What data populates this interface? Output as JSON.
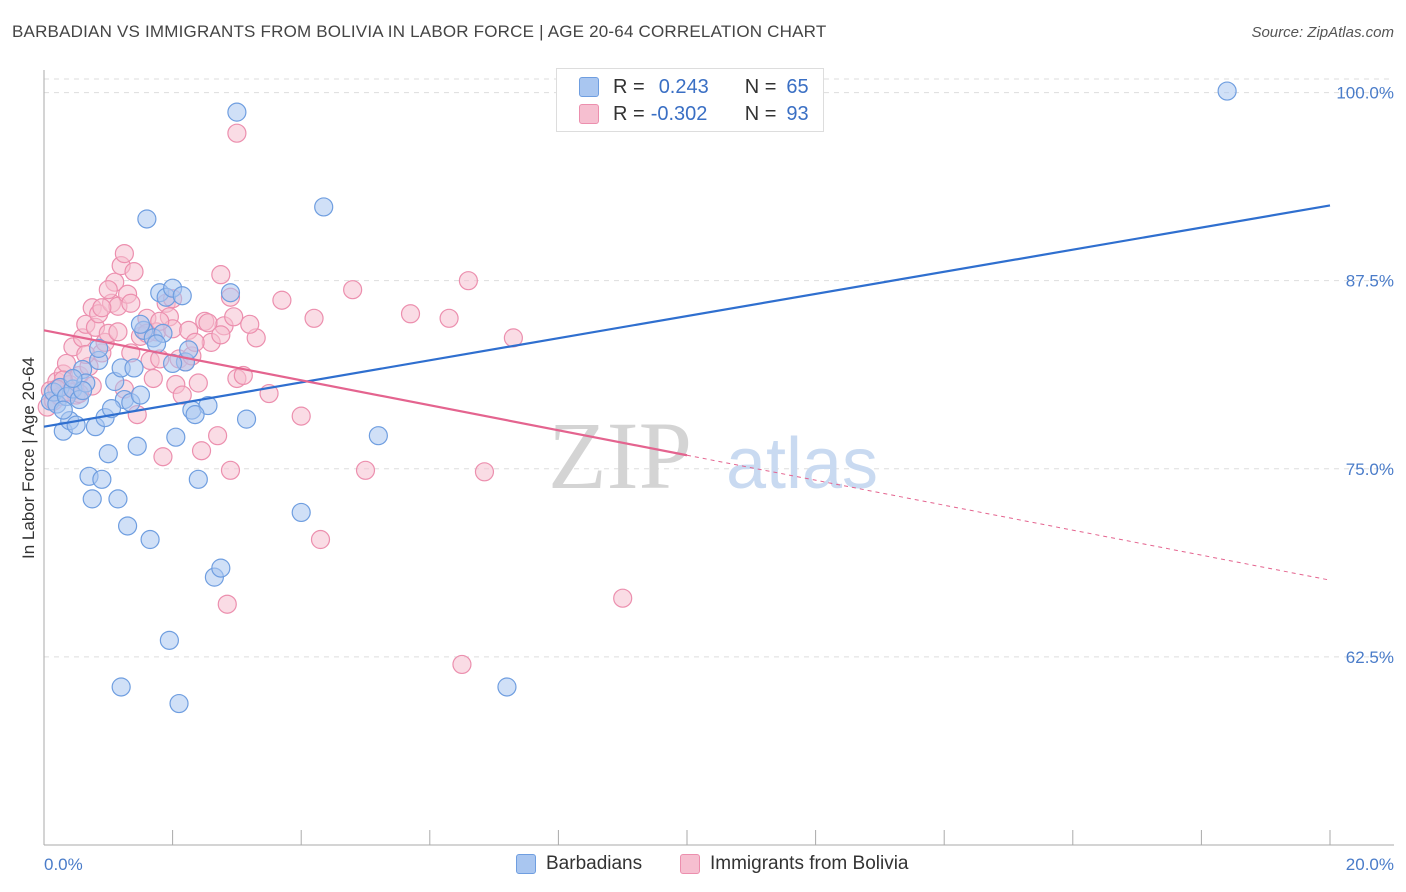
{
  "header": {
    "title": "BARBADIAN VS IMMIGRANTS FROM BOLIVIA IN LABOR FORCE | AGE 20-64 CORRELATION CHART",
    "source": "Source: ZipAtlas.com"
  },
  "watermark": {
    "zip": "ZIP",
    "atlas": "atlas"
  },
  "legend": {
    "rows": [
      {
        "r_label": "R =",
        "r_value": "0.243",
        "n_label": "N =",
        "n_value": "65"
      },
      {
        "r_label": "R =",
        "r_value": "-0.302",
        "n_label": "N =",
        "n_value": "93"
      }
    ]
  },
  "bottom_legend": {
    "series1": "Barbadians",
    "series2": "Immigrants from Bolivia"
  },
  "colors": {
    "blue_fill": "#a9c6f0",
    "blue_stroke": "#6f9ee0",
    "blue_line": "#2f6fcf",
    "pink_fill": "#f6bfd0",
    "pink_stroke": "#ec8fae",
    "pink_line": "#e4648f",
    "grid": "#dddddd",
    "axis": "#aaaaaa",
    "tick_text": "#4a7cc9"
  },
  "chart_data": {
    "type": "scatter",
    "title": "BARBADIAN VS IMMIGRANTS FROM BOLIVIA IN LABOR FORCE | AGE 20-64 CORRELATION CHART",
    "xlabel": "",
    "ylabel": "In Labor Force | Age 20-64",
    "xlim": [
      0,
      20
    ],
    "ylim": [
      50,
      101.5
    ],
    "x_tick_labels": [
      "0.0%",
      "20.0%"
    ],
    "y_ticks": [
      62.5,
      75.0,
      87.5,
      100.0
    ],
    "y_tick_labels": [
      "62.5%",
      "75.0%",
      "87.5%",
      "100.0%"
    ],
    "grid": true,
    "legend_position": "top-center",
    "series": [
      {
        "name": "Barbadians",
        "r": 0.243,
        "n": 65,
        "trend": {
          "x0": 0,
          "y0": 77.8,
          "x1": 20,
          "y1": 92.5,
          "dashed_from": null
        },
        "points": [
          [
            0.1,
            79.5
          ],
          [
            0.15,
            80.1
          ],
          [
            0.2,
            79.3
          ],
          [
            0.25,
            80.4
          ],
          [
            0.3,
            77.5
          ],
          [
            0.35,
            79.8
          ],
          [
            0.4,
            78.2
          ],
          [
            0.45,
            80.3
          ],
          [
            0.5,
            77.9
          ],
          [
            0.55,
            79.6
          ],
          [
            0.6,
            81.6
          ],
          [
            0.65,
            80.7
          ],
          [
            0.7,
            74.5
          ],
          [
            0.75,
            73.0
          ],
          [
            0.8,
            77.8
          ],
          [
            0.85,
            82.2
          ],
          [
            0.9,
            74.3
          ],
          [
            0.95,
            78.4
          ],
          [
            1.0,
            76.0
          ],
          [
            1.1,
            80.8
          ],
          [
            1.15,
            73.0
          ],
          [
            1.2,
            81.7
          ],
          [
            1.25,
            79.6
          ],
          [
            1.3,
            71.2
          ],
          [
            1.35,
            79.4
          ],
          [
            1.4,
            81.7
          ],
          [
            1.45,
            76.5
          ],
          [
            1.5,
            79.9
          ],
          [
            1.55,
            84.2
          ],
          [
            1.6,
            91.6
          ],
          [
            1.65,
            70.3
          ],
          [
            1.7,
            83.7
          ],
          [
            1.8,
            86.7
          ],
          [
            1.85,
            84.0
          ],
          [
            1.9,
            86.4
          ],
          [
            1.95,
            63.6
          ],
          [
            2.0,
            87.0
          ],
          [
            2.05,
            77.1
          ],
          [
            2.1,
            59.4
          ],
          [
            2.15,
            86.5
          ],
          [
            2.2,
            82.1
          ],
          [
            2.25,
            82.9
          ],
          [
            2.3,
            78.9
          ],
          [
            2.4,
            74.3
          ],
          [
            2.55,
            79.2
          ],
          [
            2.65,
            67.8
          ],
          [
            2.75,
            68.4
          ],
          [
            2.9,
            86.7
          ],
          [
            3.0,
            98.7
          ],
          [
            3.15,
            78.3
          ],
          [
            4.0,
            72.1
          ],
          [
            4.35,
            92.4
          ],
          [
            5.2,
            77.2
          ],
          [
            7.2,
            60.5
          ],
          [
            18.4,
            100.1
          ],
          [
            1.2,
            60.5
          ],
          [
            0.3,
            78.9
          ],
          [
            0.6,
            80.2
          ],
          [
            1.05,
            79.0
          ],
          [
            2.35,
            78.6
          ],
          [
            1.75,
            83.3
          ],
          [
            0.45,
            81.0
          ],
          [
            0.85,
            83.0
          ],
          [
            1.5,
            84.6
          ],
          [
            2.0,
            82.0
          ]
        ]
      },
      {
        "name": "Immigrants from Bolivia",
        "r": -0.302,
        "n": 93,
        "trend": {
          "x0": 0,
          "y0": 84.2,
          "x1": 20,
          "y1": 67.6,
          "dashed_from": 10.0
        },
        "points": [
          [
            0.05,
            79.1
          ],
          [
            0.1,
            80.2
          ],
          [
            0.15,
            79.5
          ],
          [
            0.2,
            80.8
          ],
          [
            0.25,
            79.8
          ],
          [
            0.3,
            81.3
          ],
          [
            0.35,
            82.0
          ],
          [
            0.4,
            80.6
          ],
          [
            0.45,
            83.1
          ],
          [
            0.5,
            79.9
          ],
          [
            0.55,
            81.2
          ],
          [
            0.6,
            83.7
          ],
          [
            0.65,
            84.6
          ],
          [
            0.7,
            81.8
          ],
          [
            0.75,
            85.7
          ],
          [
            0.8,
            84.4
          ],
          [
            0.85,
            85.3
          ],
          [
            0.9,
            82.7
          ],
          [
            0.95,
            83.4
          ],
          [
            1.0,
            84.0
          ],
          [
            1.05,
            86.0
          ],
          [
            1.1,
            87.4
          ],
          [
            1.15,
            85.8
          ],
          [
            1.2,
            88.5
          ],
          [
            1.25,
            89.3
          ],
          [
            1.3,
            86.6
          ],
          [
            1.35,
            86.0
          ],
          [
            1.4,
            88.1
          ],
          [
            1.45,
            78.6
          ],
          [
            1.5,
            83.8
          ],
          [
            1.55,
            84.2
          ],
          [
            1.6,
            85.0
          ],
          [
            1.65,
            82.2
          ],
          [
            1.7,
            81.0
          ],
          [
            1.75,
            84.1
          ],
          [
            1.8,
            82.3
          ],
          [
            1.85,
            75.8
          ],
          [
            1.9,
            86.0
          ],
          [
            1.95,
            85.1
          ],
          [
            2.0,
            84.3
          ],
          [
            2.05,
            80.6
          ],
          [
            2.1,
            82.3
          ],
          [
            2.15,
            79.9
          ],
          [
            2.2,
            82.1
          ],
          [
            2.25,
            84.2
          ],
          [
            2.3,
            82.5
          ],
          [
            2.4,
            80.7
          ],
          [
            2.45,
            76.2
          ],
          [
            2.5,
            84.8
          ],
          [
            2.6,
            83.4
          ],
          [
            2.7,
            77.2
          ],
          [
            2.75,
            87.9
          ],
          [
            2.8,
            84.5
          ],
          [
            2.85,
            66.0
          ],
          [
            2.9,
            86.4
          ],
          [
            2.95,
            85.1
          ],
          [
            3.0,
            81.0
          ],
          [
            3.1,
            81.2
          ],
          [
            3.3,
            83.7
          ],
          [
            3.5,
            80.0
          ],
          [
            3.7,
            86.2
          ],
          [
            4.0,
            78.5
          ],
          [
            4.2,
            85.0
          ],
          [
            4.3,
            70.3
          ],
          [
            4.8,
            86.9
          ],
          [
            5.0,
            74.9
          ],
          [
            5.7,
            85.3
          ],
          [
            6.3,
            85.0
          ],
          [
            6.5,
            62.0
          ],
          [
            6.6,
            87.5
          ],
          [
            6.85,
            74.8
          ],
          [
            7.3,
            83.7
          ],
          [
            9.0,
            66.4
          ],
          [
            3.0,
            97.3
          ],
          [
            2.9,
            74.9
          ],
          [
            1.0,
            86.9
          ],
          [
            0.75,
            80.5
          ],
          [
            0.55,
            80.0
          ],
          [
            0.3,
            80.9
          ],
          [
            1.35,
            82.7
          ],
          [
            1.15,
            84.1
          ],
          [
            2.55,
            84.7
          ],
          [
            2.0,
            86.3
          ],
          [
            0.9,
            85.7
          ],
          [
            0.4,
            80.1
          ],
          [
            1.6,
            84.0
          ],
          [
            1.8,
            84.8
          ],
          [
            0.2,
            80.3
          ],
          [
            2.35,
            83.4
          ],
          [
            3.2,
            84.6
          ],
          [
            0.65,
            82.6
          ],
          [
            1.25,
            80.3
          ],
          [
            2.75,
            83.9
          ]
        ]
      }
    ]
  }
}
